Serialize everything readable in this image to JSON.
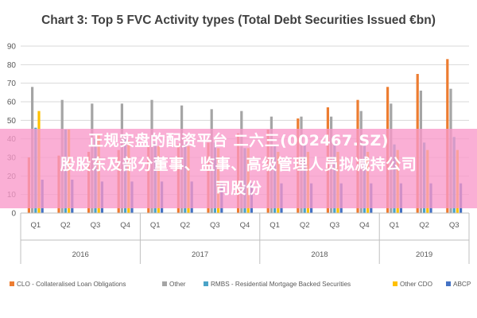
{
  "chart_data": {
    "type": "bar",
    "title": "Chart 3: Top 5 FVC Activity types (Total Debt Securities Issued €bn)",
    "ylim": [
      0,
      90
    ],
    "yticks": [
      0,
      10,
      20,
      30,
      40,
      50,
      60,
      70,
      80,
      90
    ],
    "grid": true,
    "legend_position": "bottom",
    "categories": [
      "Q1",
      "Q2",
      "Q3",
      "Q4",
      "Q1",
      "Q2",
      "Q3",
      "Q4",
      "Q1",
      "Q2",
      "Q3",
      "Q4",
      "Q1",
      "Q2",
      "Q3"
    ],
    "years": [
      {
        "label": "2016",
        "quarters": 4
      },
      {
        "label": "2017",
        "quarters": 4
      },
      {
        "label": "2018",
        "quarters": 4
      },
      {
        "label": "2019",
        "quarters": 3
      }
    ],
    "series": [
      {
        "name": "CLO - Collateralised Loan Obligations",
        "color": "#ed7d31",
        "values": [
          30,
          31,
          33,
          34,
          36,
          37,
          38,
          43,
          45,
          51,
          57,
          61,
          68,
          75,
          83
        ]
      },
      {
        "name": "Other",
        "color": "#a5a5a5",
        "values": [
          68,
          61,
          59,
          59,
          61,
          58,
          56,
          55,
          52,
          52,
          52,
          55,
          59,
          66,
          67
        ]
      },
      {
        "name": "RMBS - Residential Mortgage Backed Securities",
        "color": "#4ba3c7",
        "values": [
          46,
          45,
          40,
          40,
          38,
          38,
          38,
          35,
          37,
          37,
          38,
          37,
          37,
          38,
          41
        ]
      },
      {
        "name": "Other CDO",
        "color": "#ffc000",
        "values": [
          55,
          45,
          42,
          39,
          36,
          36,
          35,
          35,
          33,
          33,
          33,
          33,
          34,
          34,
          34
        ]
      },
      {
        "name": "ABCP",
        "color": "#4472c4",
        "values": [
          18,
          18,
          17,
          17,
          17,
          17,
          16,
          16,
          16,
          16,
          16,
          16,
          16,
          16,
          16
        ]
      }
    ]
  },
  "overlay": {
    "line1": "正规实盘的配资平台 二六三(002467.SZ)",
    "line2": "股股东及部分董事、监事、高级管理人员拟减持公司",
    "line3": "司股份"
  }
}
